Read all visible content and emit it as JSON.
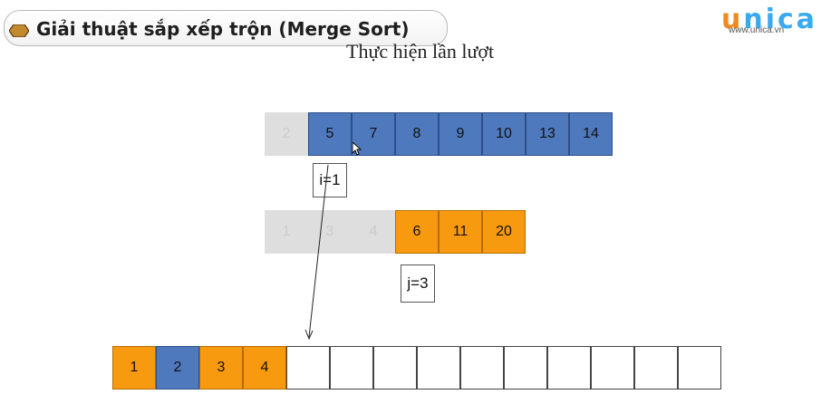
{
  "header": {
    "title": "Giải thuật sắp xếp trộn (Merge Sort)",
    "subtitle": "Thực hiện lần lượt"
  },
  "brand": {
    "logo": "unica",
    "url": "www.unica.vn"
  },
  "array_a": {
    "ghost": [
      "2"
    ],
    "values": [
      "5",
      "7",
      "8",
      "9",
      "10",
      "13",
      "14"
    ]
  },
  "array_b": {
    "ghost": [
      "1",
      "3",
      "4"
    ],
    "values": [
      "6",
      "11",
      "20"
    ]
  },
  "index_i": "i=1",
  "index_j": "j=3",
  "result": {
    "values": [
      "1",
      "2",
      "3",
      "4"
    ],
    "value_colors": [
      "orange",
      "blue",
      "orange",
      "orange"
    ],
    "total_cells": 14
  },
  "colors": {
    "blue": "#4f79bd",
    "orange": "#f79a0f",
    "ghost": "#dedede"
  },
  "icons": [
    "hexagon-bullet-icon",
    "arrow-pointer-icon"
  ]
}
